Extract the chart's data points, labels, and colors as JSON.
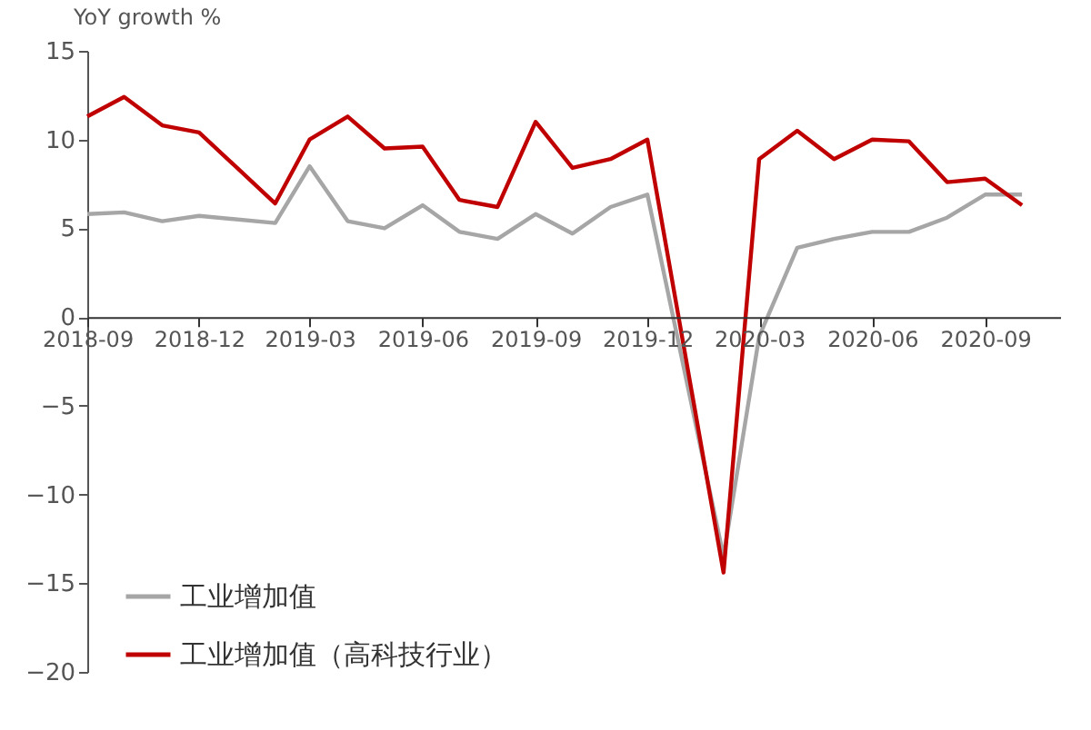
{
  "chart_data": {
    "type": "line",
    "ylabel": "YoY growth %",
    "x": [
      "2018-09",
      "2018-10",
      "2018-11",
      "2018-12",
      "2019-02",
      "2019-03",
      "2019-04",
      "2019-05",
      "2019-06",
      "2019-07",
      "2019-08",
      "2019-09",
      "2019-10",
      "2019-11",
      "2019-12",
      "2020-02",
      "2020-03",
      "2020-04",
      "2020-05",
      "2020-06",
      "2020-07",
      "2020-08",
      "2020-09",
      "2020-10"
    ],
    "series": [
      {
        "name": "工业增加值",
        "color": "#a6a6a6",
        "values": [
          5.8,
          5.9,
          5.4,
          5.7,
          5.3,
          8.5,
          5.4,
          5.0,
          6.3,
          4.8,
          4.4,
          5.8,
          4.7,
          6.2,
          6.9,
          -13.5,
          -1.1,
          3.9,
          4.4,
          4.8,
          4.8,
          5.6,
          6.9,
          6.9
        ]
      },
      {
        "name": "工业增加值（高科技行业）",
        "color": "#c00000",
        "values": [
          11.3,
          12.4,
          10.8,
          10.4,
          6.4,
          10.0,
          11.3,
          9.5,
          9.6,
          6.6,
          6.2,
          11.0,
          8.4,
          8.9,
          10.0,
          -14.4,
          8.9,
          10.5,
          8.9,
          10.0,
          9.9,
          7.6,
          7.8,
          6.3
        ]
      }
    ],
    "xlim": [
      "2018-09",
      "2020-11"
    ],
    "xticks": [
      "2018-09",
      "2018-12",
      "2019-03",
      "2019-06",
      "2019-09",
      "2019-12",
      "2020-03",
      "2020-06",
      "2020-09"
    ],
    "ylim": [
      -20,
      15
    ],
    "yticks": [
      -20,
      -15,
      -10,
      -5,
      0,
      5,
      10,
      15
    ],
    "grid": false,
    "legend": "bottom left"
  }
}
